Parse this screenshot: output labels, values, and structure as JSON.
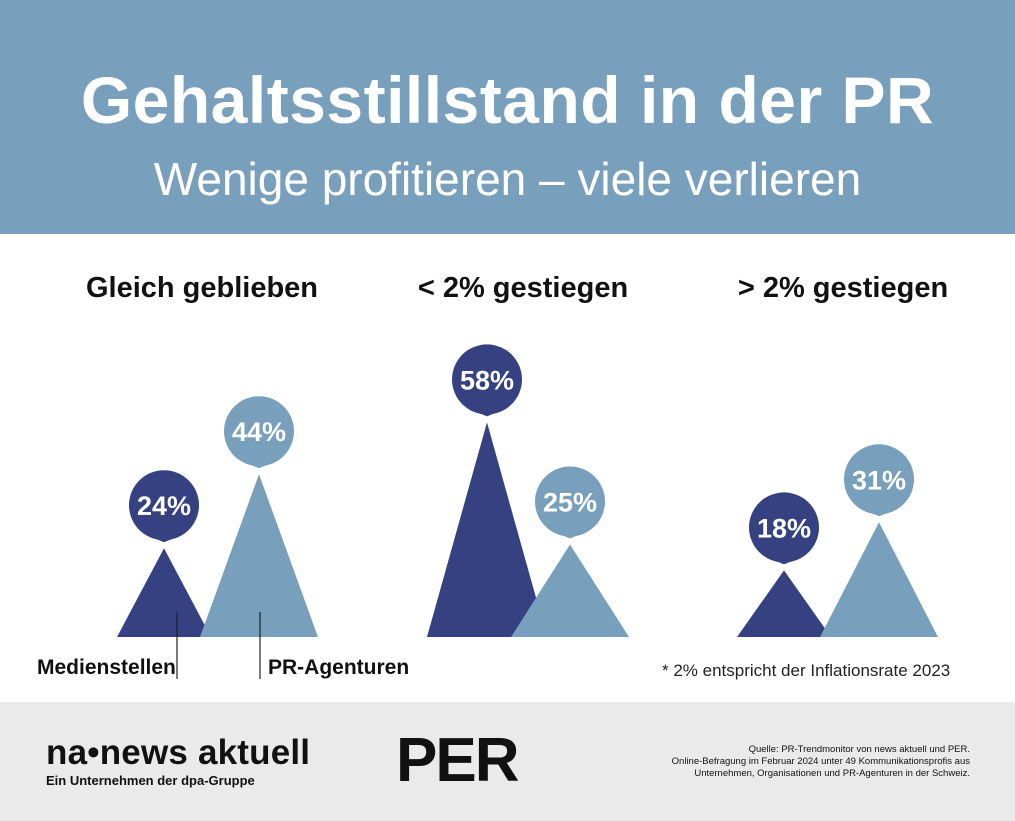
{
  "header": {
    "title": "Gehaltsstillstand in der PR",
    "subtitle": "Wenige profitieren – viele verlieren"
  },
  "colors": {
    "header_bg": "#789fbb",
    "medienstellen": "#354180",
    "pr_agenturen": "#789fbb"
  },
  "chart_data": {
    "type": "bar",
    "categories": [
      "Gleich geblieben",
      "< 2% gestiegen",
      "> 2% gestiegen"
    ],
    "series": [
      {
        "name": "Medienstellen",
        "values": [
          24,
          58,
          18
        ],
        "labels": [
          "24%",
          "58%",
          "18%"
        ]
      },
      {
        "name": "PR-Agenturen",
        "values": [
          44,
          25,
          31
        ],
        "labels": [
          "44%",
          "25%",
          "31%"
        ]
      }
    ],
    "unit": "%"
  },
  "legend": {
    "medienstellen": "Medienstellen",
    "pr_agenturen": "PR-Agenturen"
  },
  "footnote": "* 2% entspricht der Inflationsrate 2023",
  "footer": {
    "na_logo": "na•news aktuell",
    "na_tagline": "Ein Unternehmen der dpa-Gruppe",
    "per_logo": "PER",
    "source_lines": [
      "Quelle: PR-Trendmonitor von news aktuell und PER.",
      "Online-Befragung im Februar 2024 unter 49 Kommunikationsprofis aus",
      "Unternehmen, Organisationen und PR-Agenturen in der Schweiz."
    ]
  }
}
